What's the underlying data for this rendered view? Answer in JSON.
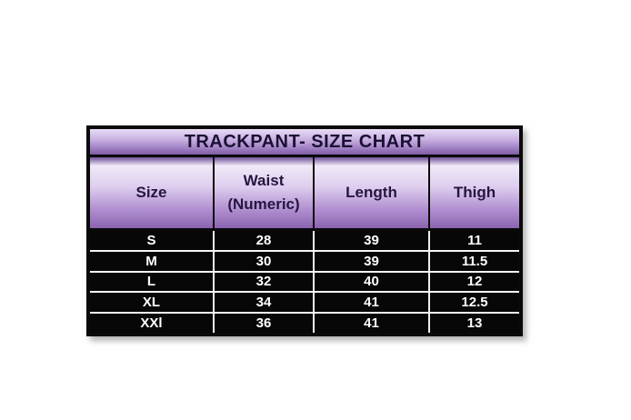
{
  "chart_data": {
    "type": "table",
    "title": "TRACKPANT- SIZE CHART",
    "columns": [
      "Size",
      "Waist (Numeric)",
      "Length",
      "Thigh"
    ],
    "rows": [
      [
        "S",
        "28",
        "39",
        "11"
      ],
      [
        "M",
        "30",
        "39",
        "11.5"
      ],
      [
        "L",
        "32",
        "40",
        "12"
      ],
      [
        "XL",
        "34",
        "41",
        "12.5"
      ],
      [
        "XXl",
        "36",
        "41",
        "13"
      ]
    ]
  },
  "header": {
    "size": "Size",
    "waist_line1": "Waist",
    "waist_line2": "(Numeric)",
    "length": "Length",
    "thigh": "Thigh"
  },
  "colors": {
    "outer_border": "#0a0a0a",
    "title_gradient_top": "#e6dcf4",
    "title_gradient_bottom": "#7f5ca4",
    "header_gradient_light": "#f0eaf8",
    "header_gradient_bottom": "#8b63b0",
    "title_text": "#1b1034",
    "header_text": "#241640",
    "data_background": "#070707",
    "data_text": "#ffffff",
    "row_divider": "#f5f5f5",
    "page_background": "#ffffff"
  }
}
